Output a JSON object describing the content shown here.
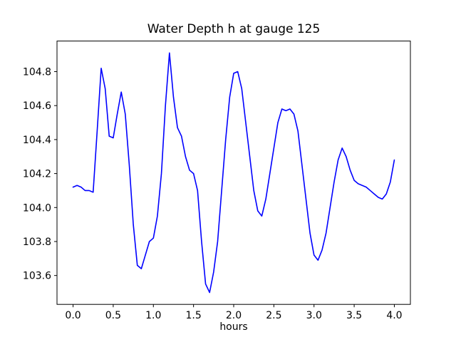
{
  "chart_data": {
    "type": "line",
    "title": "Water Depth h at gauge 125",
    "xlabel": "hours",
    "ylabel": "",
    "xlim": [
      -0.2,
      4.2
    ],
    "ylim": [
      103.43,
      104.98
    ],
    "grid": false,
    "legend": null,
    "line_color": "#0000ff",
    "xticks": [
      0.0,
      0.5,
      1.0,
      1.5,
      2.0,
      2.5,
      3.0,
      3.5,
      4.0
    ],
    "xtick_labels": [
      "0.0",
      "0.5",
      "1.0",
      "1.5",
      "2.0",
      "2.5",
      "3.0",
      "3.5",
      "4.0"
    ],
    "yticks": [
      103.6,
      103.8,
      104.0,
      104.2,
      104.4,
      104.6,
      104.8
    ],
    "ytick_labels": [
      "103.6",
      "103.8",
      "104.0",
      "104.2",
      "104.4",
      "104.6",
      "104.8"
    ],
    "series": [
      {
        "name": "h",
        "x": [
          0.0,
          0.05,
          0.1,
          0.15,
          0.2,
          0.25,
          0.3,
          0.35,
          0.4,
          0.45,
          0.5,
          0.55,
          0.6,
          0.65,
          0.7,
          0.75,
          0.8,
          0.85,
          0.9,
          0.95,
          1.0,
          1.05,
          1.1,
          1.15,
          1.2,
          1.25,
          1.3,
          1.35,
          1.4,
          1.45,
          1.5,
          1.55,
          1.6,
          1.65,
          1.7,
          1.75,
          1.8,
          1.85,
          1.9,
          1.95,
          2.0,
          2.05,
          2.1,
          2.15,
          2.2,
          2.25,
          2.3,
          2.35,
          2.4,
          2.45,
          2.5,
          2.55,
          2.6,
          2.65,
          2.7,
          2.75,
          2.8,
          2.85,
          2.9,
          2.95,
          3.0,
          3.05,
          3.1,
          3.15,
          3.2,
          3.25,
          3.3,
          3.35,
          3.4,
          3.45,
          3.5,
          3.55,
          3.6,
          3.65,
          3.7,
          3.75,
          3.8,
          3.85,
          3.9,
          3.95,
          4.0
        ],
        "y": [
          104.12,
          104.13,
          104.12,
          104.1,
          104.1,
          104.09,
          104.45,
          104.82,
          104.7,
          104.42,
          104.41,
          104.55,
          104.68,
          104.55,
          104.25,
          103.9,
          103.66,
          103.64,
          103.72,
          103.8,
          103.82,
          103.95,
          104.2,
          104.6,
          104.91,
          104.65,
          104.47,
          104.42,
          104.3,
          104.22,
          104.2,
          104.1,
          103.8,
          103.55,
          103.5,
          103.62,
          103.8,
          104.1,
          104.4,
          104.65,
          104.79,
          104.8,
          104.7,
          104.5,
          104.3,
          104.1,
          103.98,
          103.95,
          104.05,
          104.2,
          104.35,
          104.5,
          104.58,
          104.57,
          104.58,
          104.55,
          104.45,
          104.25,
          104.05,
          103.85,
          103.72,
          103.69,
          103.75,
          103.85,
          104.0,
          104.15,
          104.28,
          104.35,
          104.3,
          104.22,
          104.16,
          104.14,
          104.13,
          104.12,
          104.1,
          104.08,
          104.06,
          104.05,
          104.08,
          104.15,
          104.28
        ]
      }
    ]
  }
}
